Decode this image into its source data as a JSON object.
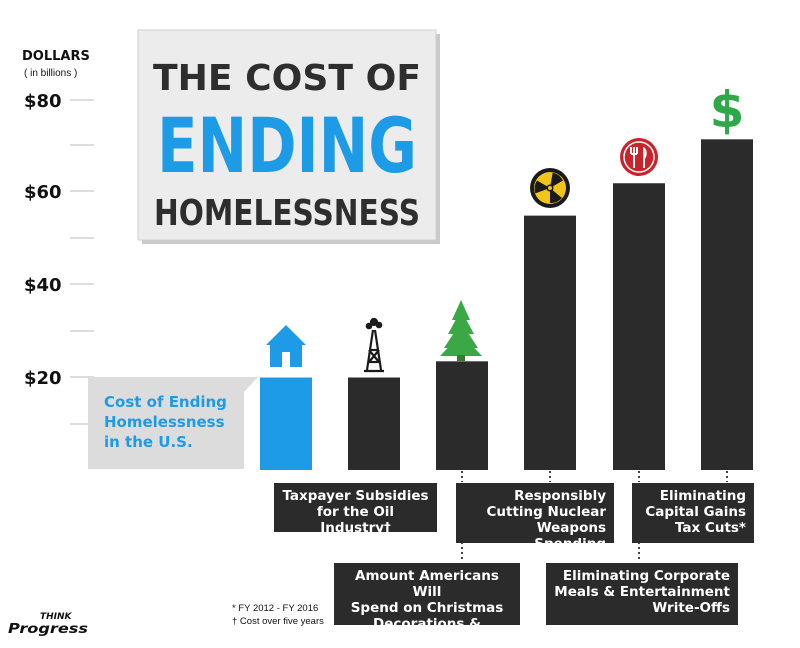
{
  "title": {
    "line1": "THE COST OF",
    "line2": "ENDING",
    "line3": "HOMELESSNESS"
  },
  "axis": {
    "unit": "DOLLARS",
    "unit_note": "( in billions )",
    "ticks": [
      "$20",
      "$40",
      "$60",
      "$80"
    ]
  },
  "chart_data": {
    "type": "bar",
    "title": "THE COST OF ENDING HOMELESSNESS",
    "ylabel": "DOLLARS ( in billions )",
    "ylim": [
      0,
      80
    ],
    "yticks": [
      20,
      40,
      60,
      80
    ],
    "categories": [
      "Cost of Ending Homelessness in the U.S.",
      "Taxpayer Subsidies for the Oil Industry†",
      "Amount Americans Will Spend on Christmas Decorations & Flowers",
      "Responsibly Cutting Nuclear Weapons Spending",
      "Eliminating Corporate Meals & Entertainment Write-Offs",
      "Eliminating Capital Gains Tax Cuts*"
    ],
    "values": [
      20,
      20,
      23.5,
      55,
      62,
      71.5
    ],
    "highlight_color": "#1e9be6",
    "bar_color": "#2b2b2b",
    "icons": [
      "house-icon",
      "oil-derrick-icon",
      "christmas-tree-icon",
      "radiation-icon",
      "fork-knife-icon",
      "dollar-sign-icon"
    ]
  },
  "labels": {
    "homeless": [
      "Cost of Ending",
      "Homelessness",
      "in the U.S."
    ],
    "oil": [
      "Taxpayer Subsidies",
      "for the Oil Industry†"
    ],
    "christmas": [
      "Amount Americans Will",
      "Spend on Christmas",
      "Decorations & Flowers"
    ],
    "nuclear": [
      "Responsibly",
      "Cutting Nuclear",
      "Weapons Spending"
    ],
    "meals": [
      "Eliminating Corporate",
      "Meals & Entertainment",
      "Write-Offs"
    ],
    "capital": [
      "Eliminating",
      "Capital Gains",
      "Tax Cuts*"
    ]
  },
  "footnotes": {
    "fy": "* FY 2012 - FY 2016",
    "five": "† Cost over five years"
  },
  "logo": {
    "line1": "THINK",
    "line2": "Progress"
  },
  "colors": {
    "accent": "#1e9be6",
    "dark": "#2b2b2b",
    "label_bg": "#dcdcdc",
    "tree": "#3aa845",
    "money": "#2fa84a",
    "nuclear": "#f0c419",
    "fork": "#c8242b"
  }
}
